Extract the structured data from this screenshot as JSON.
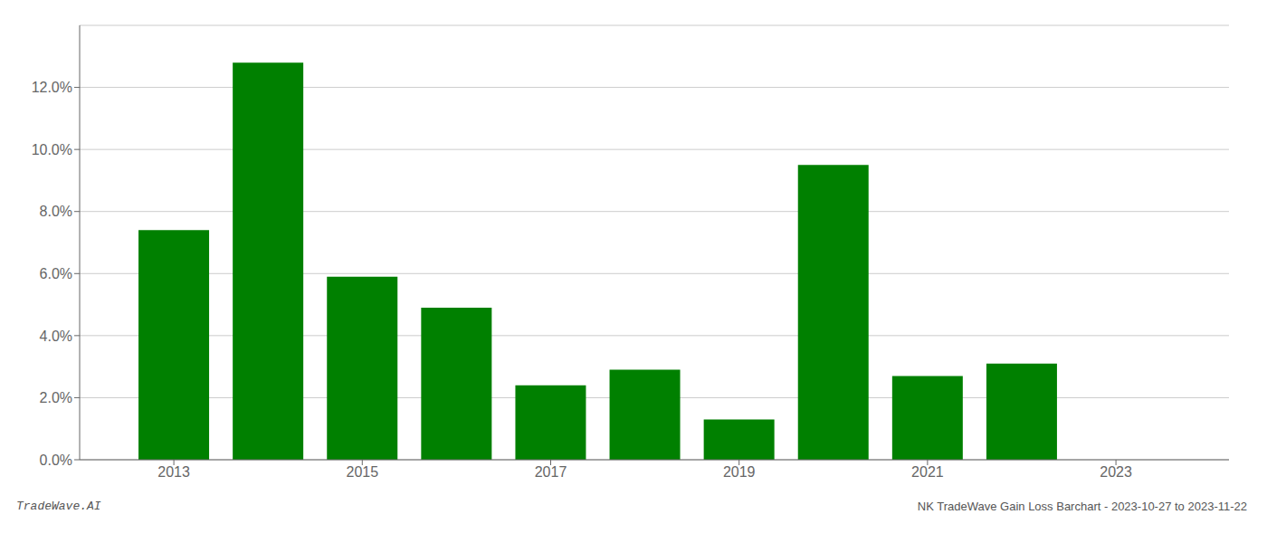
{
  "chart_data": {
    "type": "bar",
    "x": [
      2013,
      2014,
      2015,
      2016,
      2017,
      2018,
      2019,
      2020,
      2021,
      2022,
      2023
    ],
    "values": [
      0.074,
      0.128,
      0.059,
      0.049,
      0.024,
      0.029,
      0.013,
      0.095,
      0.027,
      0.031,
      0.0
    ],
    "color": "#008000",
    "xlim": [
      2012.0,
      2024.2
    ],
    "xticks": [
      2013,
      2015,
      2017,
      2019,
      2021,
      2023
    ],
    "ylim": [
      0,
      0.14
    ],
    "yticks": [
      {
        "value": 0.0,
        "label": "0.0%"
      },
      {
        "value": 0.02,
        "label": "2.0%"
      },
      {
        "value": 0.04,
        "label": "4.0%"
      },
      {
        "value": 0.06,
        "label": "6.0%"
      },
      {
        "value": 0.08,
        "label": "8.0%"
      },
      {
        "value": 0.1,
        "label": "10.0%"
      },
      {
        "value": 0.12,
        "label": "12.0%"
      }
    ],
    "grid": "y",
    "annotations": [
      "TradeWave.AI",
      "NK TradeWave Gain Loss Barchart - 2023-10-27 to 2023-11-22"
    ]
  }
}
